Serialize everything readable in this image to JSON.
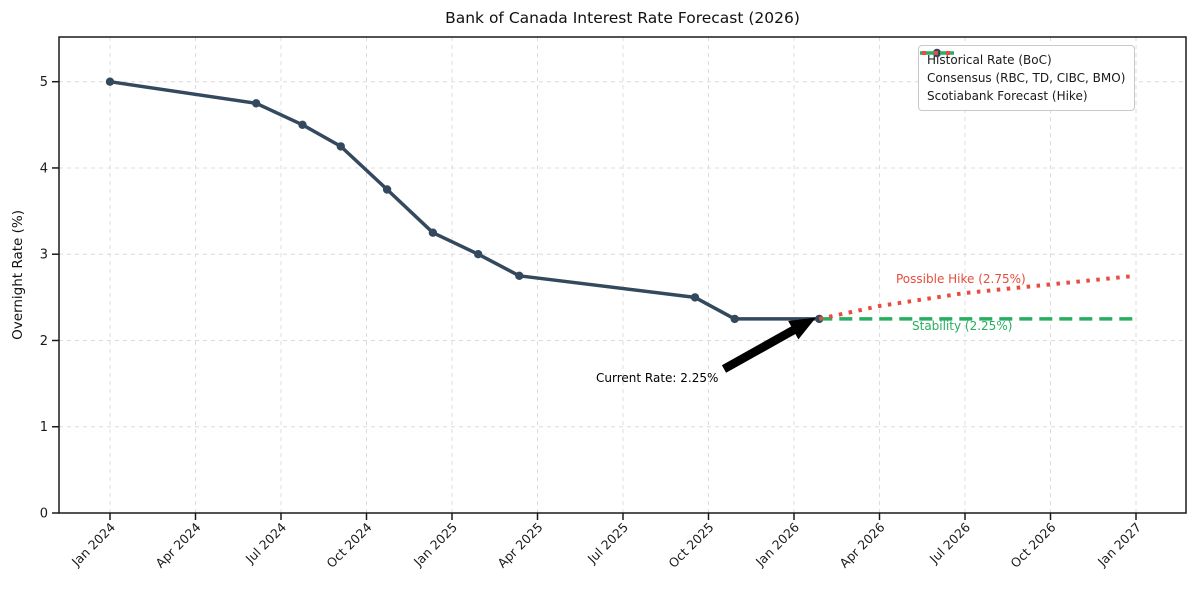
{
  "chart_data": {
    "type": "line",
    "title": "Bank of Canada Interest Rate Forecast (2026)",
    "xlabel": "",
    "ylabel": "Overnight Rate (%)",
    "ylim": [
      0,
      5.5
    ],
    "y_ticks": [
      0,
      1,
      2,
      3,
      4,
      5
    ],
    "x_ticks": [
      "Jan 2024",
      "Apr 2024",
      "Jul 2024",
      "Oct 2024",
      "Jan 2025",
      "Apr 2025",
      "Jul 2025",
      "Oct 2025",
      "Jan 2026",
      "Apr 2026",
      "Jul 2026",
      "Oct 2026",
      "Jan 2027"
    ],
    "grid": true,
    "legend_position": "upper right",
    "series": [
      {
        "name": "Historical Rate (BoC)",
        "style": "solid",
        "marker": "circle",
        "color_key": "historical",
        "points": [
          [
            "2024-01-01",
            5.0
          ],
          [
            "2024-06-05",
            4.75
          ],
          [
            "2024-07-24",
            4.5
          ],
          [
            "2024-09-04",
            4.25
          ],
          [
            "2024-10-23",
            3.75
          ],
          [
            "2024-12-11",
            3.25
          ],
          [
            "2025-01-29",
            3.0
          ],
          [
            "2025-03-12",
            2.75
          ],
          [
            "2025-09-17",
            2.5
          ],
          [
            "2025-10-29",
            2.25
          ],
          [
            "2026-01-28",
            2.25
          ]
        ]
      },
      {
        "name": "Consensus (RBC, TD, CIBC, BMO)",
        "style": "dashed",
        "color_key": "consensus",
        "points": [
          [
            "2026-01-28",
            2.25
          ],
          [
            "2027-01-01",
            2.25
          ]
        ]
      },
      {
        "name": "Scotiabank Forecast (Hike)",
        "style": "dotted",
        "color_key": "scotiabank",
        "points": [
          [
            "2026-01-28",
            2.25
          ],
          [
            "2026-04-01",
            2.4
          ],
          [
            "2026-07-01",
            2.55
          ],
          [
            "2026-10-01",
            2.65
          ],
          [
            "2027-01-01",
            2.75
          ]
        ]
      }
    ],
    "annotations": [
      {
        "text": "Current Rate: 2.25%",
        "color_key": "axis",
        "arrow": true,
        "points_to": [
          "2026-01-28",
          2.25
        ]
      },
      {
        "text": "Possible Hike (2.75%)",
        "color_key": "scotiabank"
      },
      {
        "text": "Stability (2.25%)",
        "color_key": "consensus"
      }
    ]
  },
  "colors": {
    "historical": "#34495e",
    "consensus": "#27ae60",
    "scotiabank": "#e74c3c",
    "grid": "#dcdcdc",
    "axis": "#1a1a1a",
    "background": "#ffffff"
  }
}
